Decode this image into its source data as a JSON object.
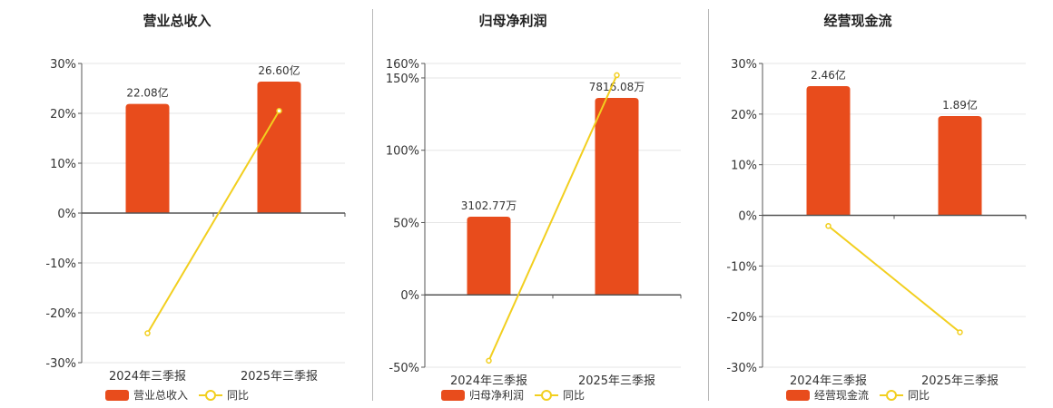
{
  "colors": {
    "bar": "#e84c1c",
    "line": "#f2cf1f",
    "grid": "#e6e6e6",
    "axis": "#555555",
    "text": "#333333"
  },
  "chart_data": [
    {
      "type": "bar",
      "title": "营业总收入",
      "categories": [
        "2024年三季报",
        "2025年三季报"
      ],
      "bar_series": {
        "name": "营业总收入",
        "values": [
          22.08,
          26.6
        ],
        "labels": [
          "22.08亿",
          "26.60亿"
        ]
      },
      "line_series": {
        "name": "同比",
        "values": [
          -24.1,
          20.5
        ]
      },
      "yticks": [
        "30%",
        "20%",
        "10%",
        "0%",
        "-10%",
        "-20%",
        "-30%"
      ],
      "ylim": [
        -30,
        30
      ]
    },
    {
      "type": "bar",
      "title": "归母净利润",
      "categories": [
        "2024年三季报",
        "2025年三季报"
      ],
      "bar_series": {
        "name": "归母净利润",
        "values": [
          3102.77,
          7816.08
        ],
        "labels": [
          "3102.77万",
          "7816.08万"
        ]
      },
      "line_series": {
        "name": "同比",
        "values": [
          -45.5,
          151.9
        ]
      },
      "yticks": [
        "160%",
        "150%",
        "100%",
        "50%",
        "0%",
        "-50%"
      ],
      "ytick_values": [
        160,
        150,
        100,
        50,
        0,
        -50
      ],
      "ylim": [
        -50,
        160
      ]
    },
    {
      "type": "bar",
      "title": "经营现金流",
      "categories": [
        "2024年三季报",
        "2025年三季报"
      ],
      "bar_series": {
        "name": "经营现金流",
        "values": [
          2.46,
          1.89
        ],
        "labels": [
          "2.46亿",
          "1.89亿"
        ]
      },
      "line_series": {
        "name": "同比",
        "values": [
          -2.1,
          -23.1
        ]
      },
      "yticks": [
        "30%",
        "20%",
        "10%",
        "0%",
        "-10%",
        "-20%",
        "-30%"
      ],
      "ylim": [
        -30,
        30
      ]
    }
  ],
  "legend": {
    "line_label": "同比"
  }
}
